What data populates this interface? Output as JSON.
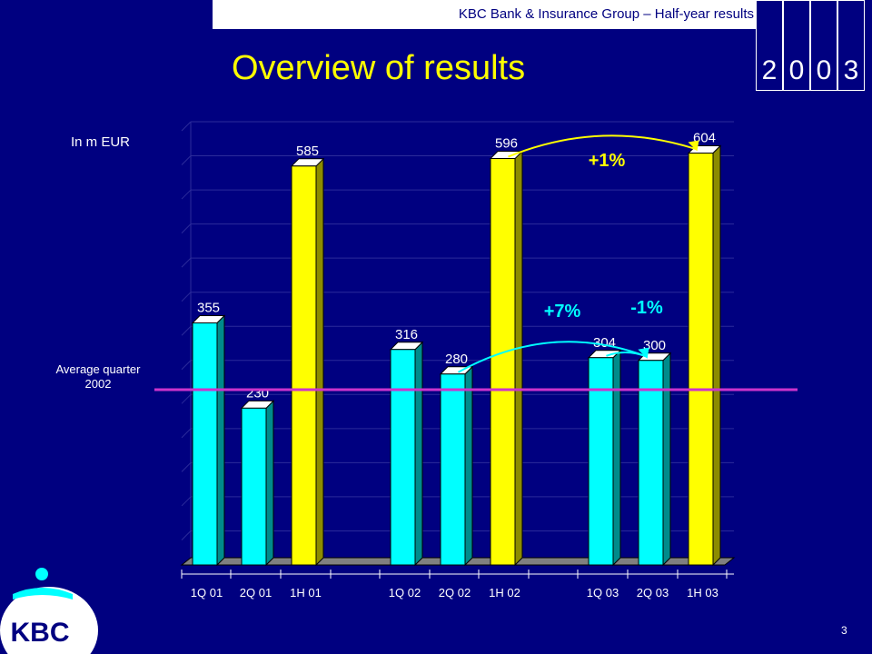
{
  "header": {
    "subtitle": "KBC Bank & Insurance Group – Half-year results",
    "year_digits": [
      "2",
      "0",
      "0",
      "3"
    ]
  },
  "title": "Overview of results",
  "unit_label": "In m EUR",
  "avg_label_line1": "Average quarter",
  "avg_label_line2": "2002",
  "page_number": "3",
  "logo": {
    "text": "KBC",
    "color": "#ffffff"
  },
  "colors": {
    "background": "#000080",
    "quarter_bar": "#00ffff",
    "half_year_bar": "#ffff00",
    "avg_line": "#cc33cc",
    "arrow_cyan": "#00ffff",
    "arrow_yellow": "#ffff00",
    "text": "#ffffff"
  },
  "chart_data": {
    "type": "bar",
    "categories": [
      "1Q 01",
      "2Q 01",
      "1H 01",
      "1Q 02",
      "2Q 02",
      "1H 02",
      "1Q 03",
      "2Q 03",
      "1H 03"
    ],
    "values": [
      355,
      230,
      585,
      316,
      280,
      596,
      304,
      300,
      604
    ],
    "value_labels": [
      "355",
      "230",
      "585",
      "316",
      "280",
      "596",
      "304",
      "300",
      "604"
    ],
    "bar_kinds": [
      "quarter",
      "quarter",
      "half",
      "quarter",
      "quarter",
      "half",
      "quarter",
      "quarter",
      "half"
    ],
    "ylim": [
      0,
      650
    ],
    "y_axis_visible": false,
    "reference_line": {
      "value": 257,
      "label": "Average quarter 2002"
    },
    "annotations": [
      {
        "text": "+1%",
        "from": "1H 02",
        "to": "1H 03"
      },
      {
        "text": "+7%",
        "from": "2Q 02",
        "to": "2Q 03"
      },
      {
        "text": "-1%",
        "from": "1Q 03",
        "to": "2Q 03"
      }
    ]
  }
}
